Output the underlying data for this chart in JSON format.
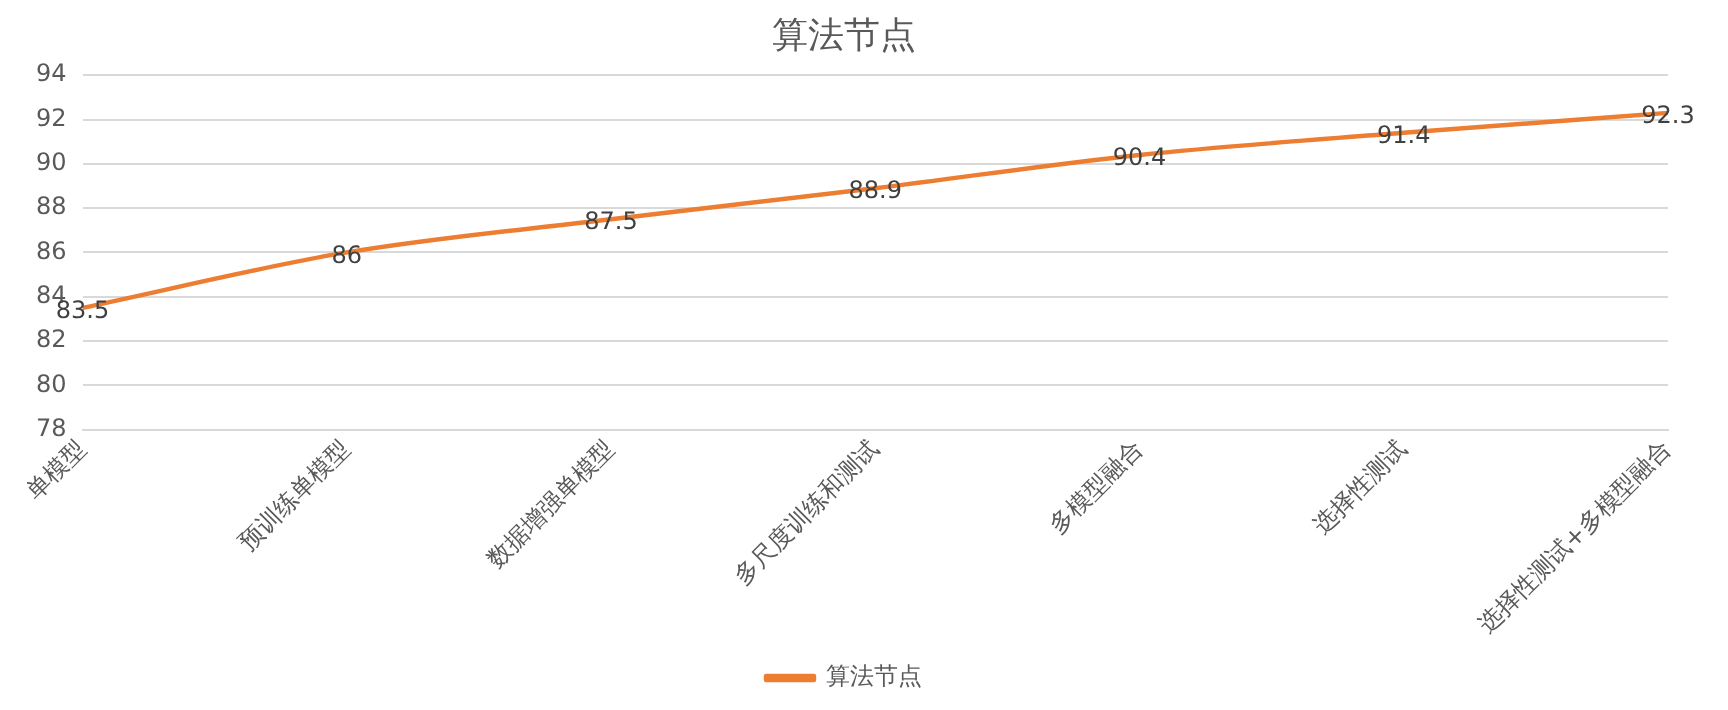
{
  "chart_data": {
    "type": "line",
    "title": "算法节点",
    "categories": [
      "单模型",
      "预训练单模型",
      "数据增强单模型",
      "多尺度训练和测试",
      "多模型融合",
      "选择性测试",
      "选择性测试+多模型融合"
    ],
    "series": [
      {
        "name": "算法节点",
        "color": "#ed7d31",
        "values": [
          83.5,
          86,
          87.5,
          88.9,
          90.4,
          91.4,
          92.3
        ]
      }
    ],
    "ylim": [
      78,
      94
    ],
    "yticks": [
      78,
      80,
      82,
      84,
      86,
      88,
      90,
      92,
      94
    ],
    "grid": "y",
    "legend": "bottom",
    "marker": "none",
    "line_style": "solid",
    "data_labels": true
  }
}
